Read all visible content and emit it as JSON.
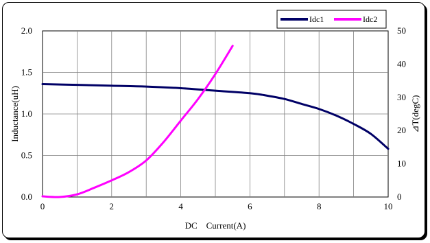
{
  "chart_data": {
    "type": "line",
    "xlabel": "DC　Current(A)",
    "ylabel_left": "Inductance(uH)",
    "ylabel_right": "⊿T(degC)",
    "xlim": [
      0,
      10
    ],
    "ylim_left": [
      0.0,
      2.0
    ],
    "ylim_right": [
      0,
      50
    ],
    "x_ticks": [
      "0",
      "2",
      "4",
      "6",
      "8",
      "10"
    ],
    "y_left_ticks": [
      "0.0",
      "0.5",
      "1.0",
      "1.5",
      "2.0"
    ],
    "y_right_ticks": [
      "0",
      "10",
      "20",
      "30",
      "40",
      "50"
    ],
    "grid": true,
    "legend_position": "top-right",
    "series": [
      {
        "name": "Idc1",
        "axis": "left",
        "color": "#000066",
        "x": [
          0,
          1,
          2,
          3,
          4,
          5,
          6,
          6.5,
          7,
          7.5,
          8,
          8.5,
          9,
          9.5,
          10
        ],
        "y": [
          1.36,
          1.35,
          1.34,
          1.33,
          1.31,
          1.28,
          1.25,
          1.22,
          1.18,
          1.12,
          1.06,
          0.98,
          0.88,
          0.76,
          0.58
        ]
      },
      {
        "name": "Idc2",
        "axis": "right",
        "color": "#ff00ff",
        "x": [
          0,
          0.5,
          1,
          1.5,
          2,
          2.5,
          3,
          3.5,
          4,
          4.5,
          5,
          5.5
        ],
        "y": [
          0.2,
          0,
          0.8,
          2.8,
          5,
          7.5,
          11,
          16.5,
          23,
          29.5,
          37,
          45.5
        ]
      }
    ]
  }
}
